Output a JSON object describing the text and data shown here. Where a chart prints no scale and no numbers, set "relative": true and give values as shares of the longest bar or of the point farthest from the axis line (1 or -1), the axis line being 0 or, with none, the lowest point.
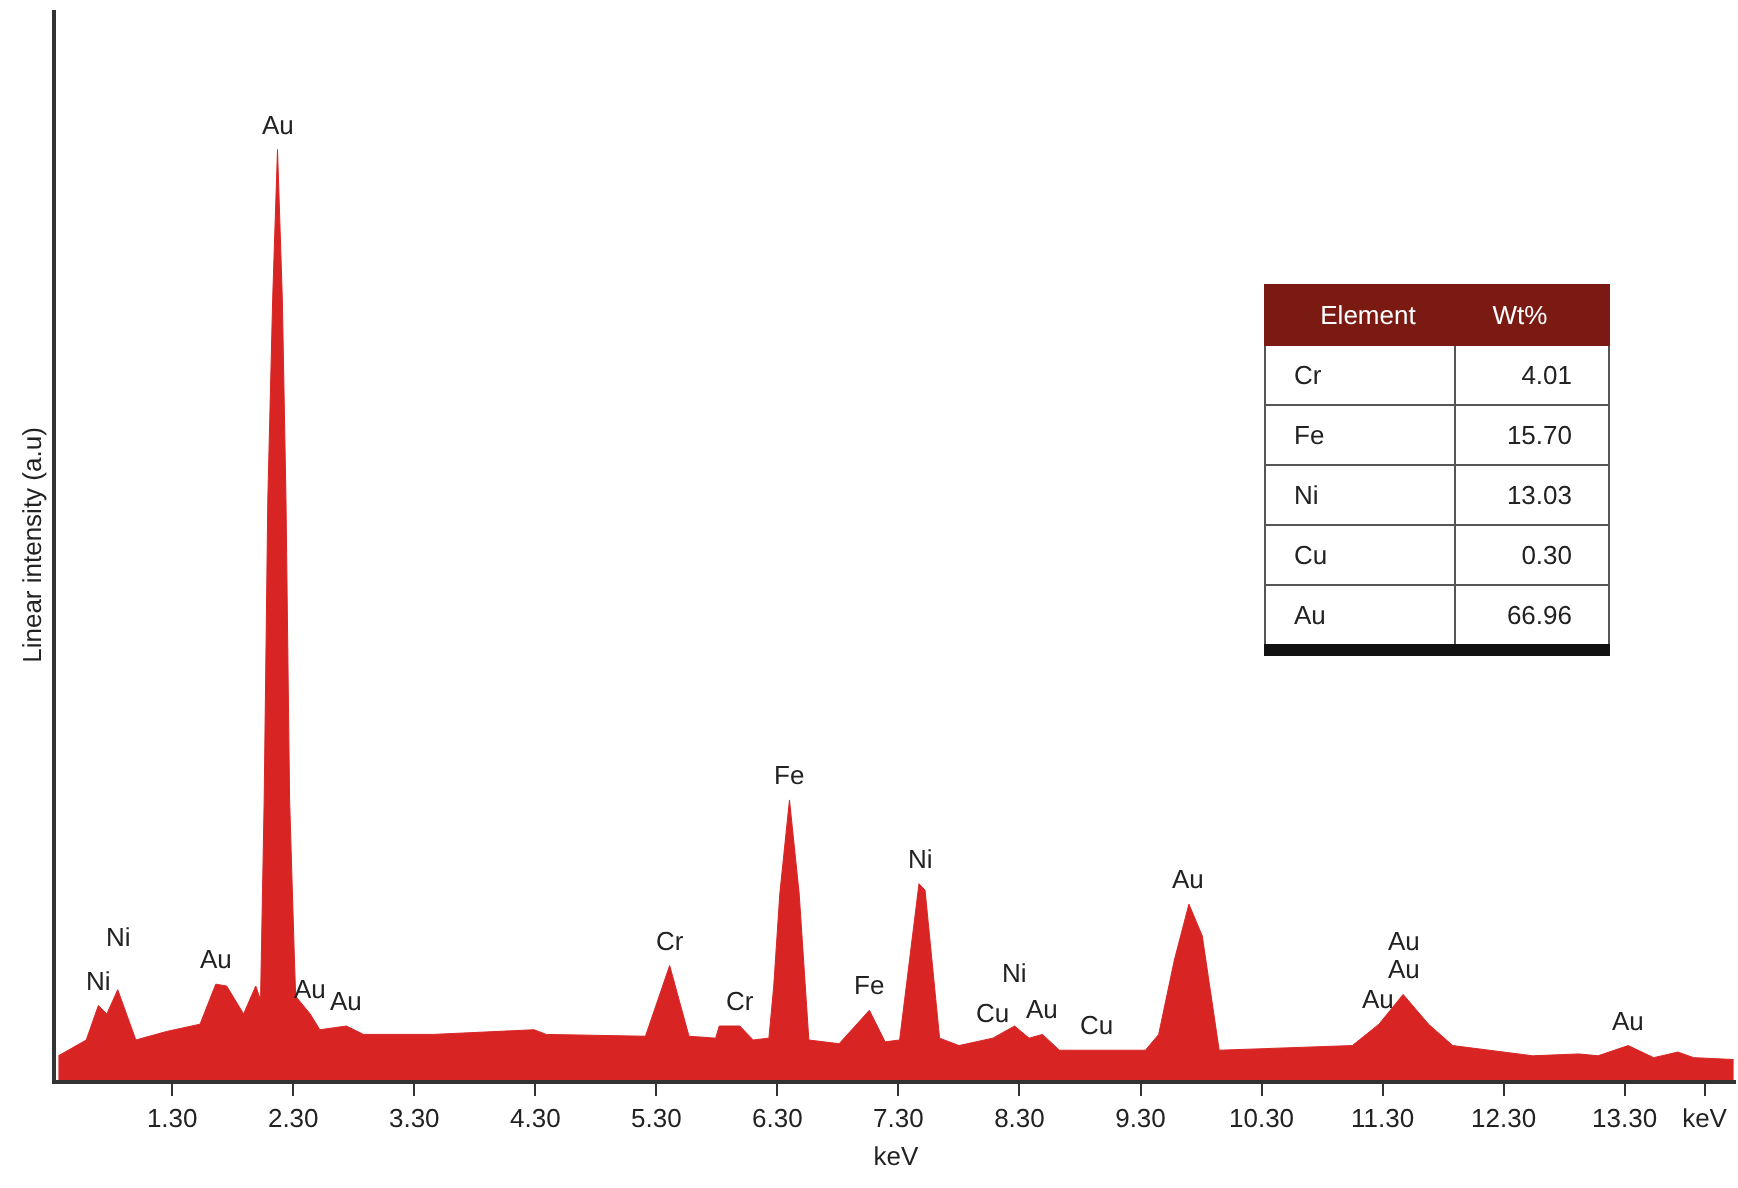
{
  "chart_data": {
    "type": "area",
    "relative": true,
    "color": "#d92424",
    "xlabel": "keV",
    "ylabel": "Linear intensity (a.u)",
    "xlim": [
      0.34,
      14.22
    ],
    "ylim": [
      0,
      1.15
    ],
    "xticks": [
      {
        "value": 1.3,
        "label": "1.30"
      },
      {
        "value": 2.3,
        "label": "2.30"
      },
      {
        "value": 3.3,
        "label": "3.30"
      },
      {
        "value": 4.3,
        "label": "4.30"
      },
      {
        "value": 5.3,
        "label": "5.30"
      },
      {
        "value": 6.3,
        "label": "6.30"
      },
      {
        "value": 7.3,
        "label": "7.30"
      },
      {
        "value": 8.3,
        "label": "8.30"
      },
      {
        "value": 9.3,
        "label": "9.30"
      },
      {
        "value": 10.3,
        "label": "10.30"
      },
      {
        "value": 11.3,
        "label": "11.30"
      },
      {
        "value": 12.3,
        "label": "12.30"
      },
      {
        "value": 13.3,
        "label": "13.30"
      },
      {
        "value": 13.96,
        "label": "keV"
      }
    ],
    "grid": false,
    "legend": false,
    "x": [
      0.36,
      0.59,
      0.69,
      0.76,
      0.85,
      1.0,
      1.25,
      1.53,
      1.66,
      1.75,
      1.89,
      1.99,
      2.03,
      2.06,
      2.09,
      2.13,
      2.17,
      2.21,
      2.24,
      2.27,
      2.31,
      2.32,
      2.44,
      2.52,
      2.74,
      2.88,
      3.46,
      4.29,
      4.39,
      5.21,
      5.41,
      5.57,
      5.79,
      5.82,
      5.99,
      6.1,
      6.23,
      6.27,
      6.32,
      6.4,
      6.48,
      6.56,
      6.81,
      7.06,
      7.19,
      7.31,
      7.47,
      7.52,
      7.64,
      7.8,
      8.08,
      8.26,
      8.38,
      8.49,
      8.63,
      9.34,
      9.45,
      9.58,
      9.7,
      9.81,
      9.95,
      11.05,
      11.27,
      11.47,
      11.68,
      11.88,
      12.54,
      12.92,
      13.08,
      13.33,
      13.54,
      13.74,
      13.87,
      14.2
    ],
    "values": [
      0.026,
      0.043,
      0.08,
      0.071,
      0.097,
      0.043,
      0.052,
      0.06,
      0.103,
      0.101,
      0.071,
      0.101,
      0.086,
      0.301,
      0.624,
      0.839,
      1,
      0.839,
      0.624,
      0.301,
      0.129,
      0.09,
      0.071,
      0.054,
      0.058,
      0.049,
      0.049,
      0.054,
      0.049,
      0.047,
      0.123,
      0.047,
      0.045,
      0.058,
      0.058,
      0.043,
      0.045,
      0.101,
      0.2,
      0.301,
      0.2,
      0.043,
      0.039,
      0.075,
      0.041,
      0.043,
      0.211,
      0.204,
      0.045,
      0.037,
      0.045,
      0.058,
      0.045,
      0.049,
      0.032,
      0.032,
      0.049,
      0.129,
      0.189,
      0.155,
      0.032,
      0.037,
      0.06,
      0.092,
      0.06,
      0.037,
      0.026,
      0.028,
      0.026,
      0.037,
      0.024,
      0.03,
      0.024,
      0.022
    ],
    "annotations": [
      {
        "text": "Ni",
        "x": 0.69,
        "y": 0.08
      },
      {
        "text": "Ni",
        "x": 0.85,
        "y": 0.097
      },
      {
        "text": "Au",
        "x": 1.66,
        "y": 0.103
      },
      {
        "text": "Au",
        "x": 2.17,
        "y": 1
      },
      {
        "text": "Au",
        "x": 2.44,
        "y": 0.071
      },
      {
        "text": "Au",
        "x": 2.74,
        "y": 0.058
      },
      {
        "text": "Cr",
        "x": 5.41,
        "y": 0.123
      },
      {
        "text": "Cr",
        "x": 5.99,
        "y": 0.058
      },
      {
        "text": "Fe",
        "x": 6.4,
        "y": 0.301
      },
      {
        "text": "Fe",
        "x": 7.06,
        "y": 0.075
      },
      {
        "text": "Ni",
        "x": 7.47,
        "y": 0.211
      },
      {
        "text": "Cu",
        "x": 8.08,
        "y": 0.045
      },
      {
        "text": "Ni",
        "x": 8.26,
        "y": 0.058
      },
      {
        "text": "Au",
        "x": 8.49,
        "y": 0.049
      },
      {
        "text": "Cu",
        "x": 8.94,
        "y": 0.032
      },
      {
        "text": "Au",
        "x": 9.7,
        "y": 0.189
      },
      {
        "text": "Au",
        "x": 11.27,
        "y": 0.06
      },
      {
        "text": "Au",
        "x": 11.47,
        "y": 0.092
      },
      {
        "text": "Au",
        "x": 11.47,
        "y": 0.092
      },
      {
        "text": "Au",
        "x": 13.33,
        "y": 0.037
      },
      "Element",
      "Wt%",
      "Cr",
      "4.01",
      "Fe",
      "15.70",
      "Ni",
      "13.03",
      "Cu",
      "0.30",
      "Au",
      "66.96"
    ]
  }
}
